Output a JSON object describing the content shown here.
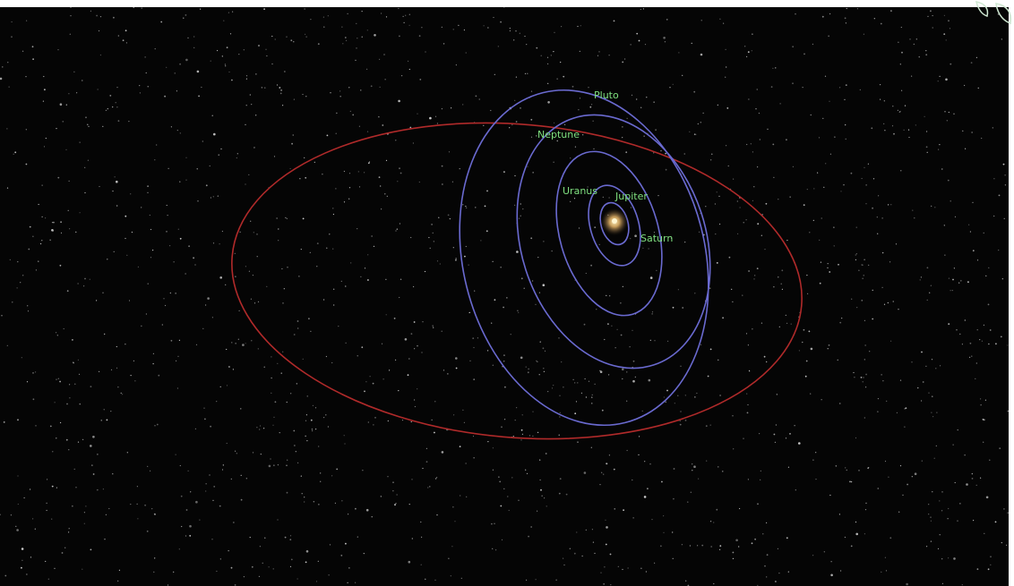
{
  "labels": {
    "pluto": "Pluto",
    "neptune": "Neptune",
    "uranus": "Uranus",
    "jupiter": "Jupiter",
    "saturn": "Saturn"
  },
  "colors": {
    "background": "#050505",
    "orbit": "#6a6ad0",
    "eccentric_orbit": "#b02a2a",
    "label": "#7fe07f",
    "sun": "#f0d080",
    "stars": "#d8d8d8"
  },
  "icons": {
    "watermark": "leaf-watermark-icon"
  }
}
